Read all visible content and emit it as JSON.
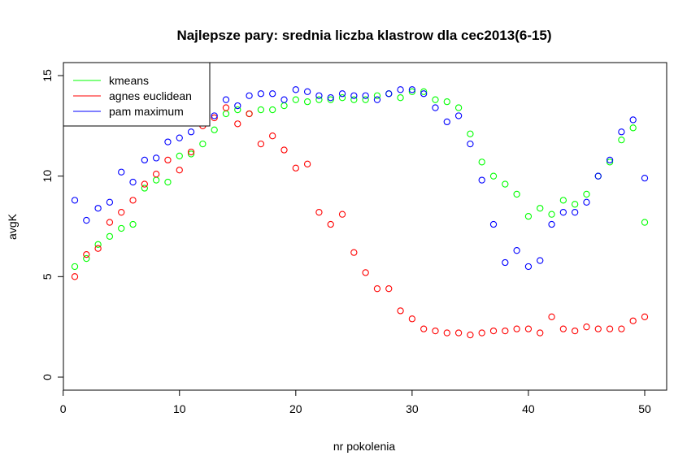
{
  "chart_data": {
    "type": "scatter",
    "title": "Najlepsze pary: srednia liczba klastrow dla cec2013(6-15)",
    "xlabel": "nr pokolenia",
    "ylabel": "avgK",
    "xlim": [
      0,
      51
    ],
    "ylim": [
      -0.5,
      15.5
    ],
    "xticks": [
      0,
      10,
      20,
      30,
      40,
      50
    ],
    "yticks": [
      0,
      5,
      10,
      15
    ],
    "grid": false,
    "legend_position": "top-left",
    "x": [
      1,
      2,
      3,
      4,
      5,
      6,
      7,
      8,
      9,
      10,
      11,
      12,
      13,
      14,
      15,
      16,
      17,
      18,
      19,
      20,
      21,
      22,
      23,
      24,
      25,
      26,
      27,
      28,
      29,
      30,
      31,
      32,
      33,
      34,
      35,
      36,
      37,
      38,
      39,
      40,
      41,
      42,
      43,
      44,
      45,
      46,
      47,
      48,
      49,
      50
    ],
    "series": [
      {
        "name": "kmeans",
        "color": "#00ff00",
        "values": [
          5.5,
          5.9,
          6.6,
          7.0,
          7.4,
          7.6,
          9.4,
          9.8,
          9.7,
          11.0,
          11.1,
          11.6,
          12.3,
          13.1,
          13.3,
          13.1,
          13.3,
          13.3,
          13.5,
          13.8,
          13.7,
          13.8,
          13.8,
          13.9,
          13.8,
          13.8,
          14.0,
          14.1,
          13.9,
          14.2,
          14.2,
          13.8,
          13.7,
          13.4,
          12.1,
          10.7,
          10.0,
          9.6,
          9.1,
          8.0,
          8.4,
          8.1,
          8.8,
          8.6,
          9.1,
          10.0,
          10.7,
          11.8,
          12.4,
          7.7
        ]
      },
      {
        "name": "agnes euclidean",
        "color": "#ff0000",
        "values": [
          5.0,
          6.1,
          6.4,
          7.7,
          8.2,
          8.8,
          9.6,
          10.1,
          10.8,
          10.3,
          11.2,
          12.5,
          12.9,
          13.4,
          12.6,
          13.1,
          11.6,
          12.0,
          11.3,
          10.4,
          10.6,
          8.2,
          7.6,
          8.1,
          6.2,
          5.2,
          4.4,
          4.4,
          3.3,
          2.9,
          2.4,
          2.3,
          2.2,
          2.2,
          2.1,
          2.2,
          2.3,
          2.3,
          2.4,
          2.4,
          2.2,
          3.0,
          2.4,
          2.3,
          2.5,
          2.4,
          2.4,
          2.4,
          2.8,
          3.0
        ]
      },
      {
        "name": "pam maximum",
        "color": "#0000ff",
        "values": [
          8.8,
          7.8,
          8.4,
          8.7,
          10.2,
          9.7,
          10.8,
          10.9,
          11.7,
          11.9,
          12.2,
          12.8,
          13.0,
          13.8,
          13.5,
          14.0,
          14.1,
          14.1,
          13.8,
          14.3,
          14.2,
          14.0,
          13.9,
          14.1,
          14.0,
          14.0,
          13.8,
          14.1,
          14.3,
          14.3,
          14.1,
          13.4,
          12.7,
          13.0,
          11.6,
          9.8,
          7.6,
          5.7,
          6.3,
          5.5,
          5.8,
          7.6,
          8.2,
          8.2,
          8.7,
          10.0,
          10.8,
          12.2,
          12.8,
          9.9
        ]
      }
    ]
  }
}
